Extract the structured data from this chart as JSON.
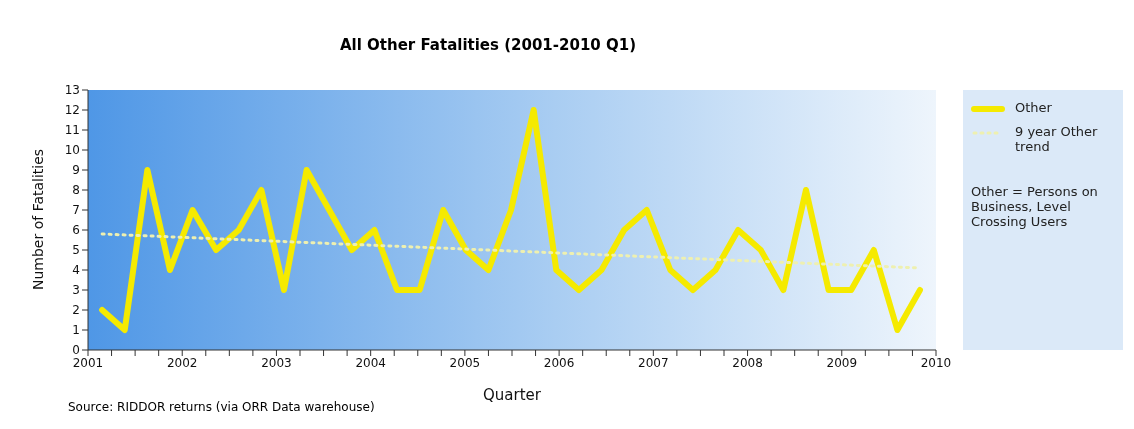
{
  "chart_data": {
    "type": "line",
    "title": "All Other Fatalities (2001-2010 Q1)",
    "xlabel": "Quarter",
    "ylabel": "Number of Fatalities",
    "x": [
      2001.15,
      2001.39,
      2001.63,
      2001.87,
      2002.11,
      2002.36,
      2002.6,
      2002.84,
      2003.08,
      2003.32,
      2003.56,
      2003.8,
      2004.04,
      2004.28,
      2004.52,
      2004.77,
      2005.01,
      2005.25,
      2005.49,
      2005.73,
      2005.97,
      2006.21,
      2006.45,
      2006.69,
      2006.93,
      2007.18,
      2007.42,
      2007.66,
      2007.9,
      2008.14,
      2008.38,
      2008.62,
      2008.86,
      2009.1,
      2009.34,
      2009.59,
      2009.83
    ],
    "series": [
      {
        "name": "Other",
        "color": "#f5ea00",
        "values": [
          2,
          1,
          9,
          4,
          7,
          5,
          6,
          8,
          3,
          9,
          7,
          5,
          6,
          3,
          3,
          7,
          5,
          4,
          7,
          12,
          4,
          3,
          4,
          6,
          7,
          4,
          3,
          4,
          6,
          5,
          3,
          8,
          3,
          3,
          5,
          1,
          3
        ]
      },
      {
        "name": "9 year Other trend",
        "color": "#eef0b0",
        "type": "line",
        "line_style": "dotted",
        "x": [
          2001.15,
          2009.83
        ],
        "values": [
          5.8,
          4.1
        ]
      }
    ],
    "xlim": [
      2001,
      2010
    ],
    "xticks": [
      2001,
      {
        "value": 2001.25,
        "label": null
      },
      {
        "value": 2001.5,
        "label": null
      },
      {
        "value": 2001.75,
        "label": null
      },
      2002,
      {
        "value": 2002.25,
        "label": null
      },
      {
        "value": 2002.5,
        "label": null
      },
      {
        "value": 2002.75,
        "label": null
      },
      2003,
      {
        "value": 2003.25,
        "label": null
      },
      {
        "value": 2003.5,
        "label": null
      },
      {
        "value": 2003.75,
        "label": null
      },
      2004,
      {
        "value": 2004.25,
        "label": null
      },
      {
        "value": 2004.5,
        "label": null
      },
      {
        "value": 2004.75,
        "label": null
      },
      2005,
      {
        "value": 2005.25,
        "label": null
      },
      {
        "value": 2005.5,
        "label": null
      },
      {
        "value": 2005.75,
        "label": null
      },
      2006,
      {
        "value": 2006.25,
        "label": null
      },
      {
        "value": 2006.5,
        "label": null
      },
      {
        "value": 2006.75,
        "label": null
      },
      2007,
      {
        "value": 2007.25,
        "label": null
      },
      {
        "value": 2007.5,
        "label": null
      },
      {
        "value": 2007.75,
        "label": null
      },
      2008,
      {
        "value": 2008.25,
        "label": null
      },
      {
        "value": 2008.5,
        "label": null
      },
      {
        "value": 2008.75,
        "label": null
      },
      2009,
      {
        "value": 2009.25,
        "label": null
      },
      {
        "value": 2009.5,
        "label": null
      },
      {
        "value": 2009.75,
        "label": null
      },
      2010
    ],
    "ylim": [
      0,
      13
    ],
    "yticks": [
      0,
      1,
      2,
      3,
      4,
      5,
      6,
      7,
      8,
      9,
      10,
      11,
      12,
      13
    ],
    "grid": false,
    "legend": "right",
    "marker": "none",
    "line_style": "solid",
    "annotations": [
      "Other = Persons on Business, Level Crossing Users",
      "Source: RIDDOR returns (via ORR Data warehouse)"
    ]
  }
}
